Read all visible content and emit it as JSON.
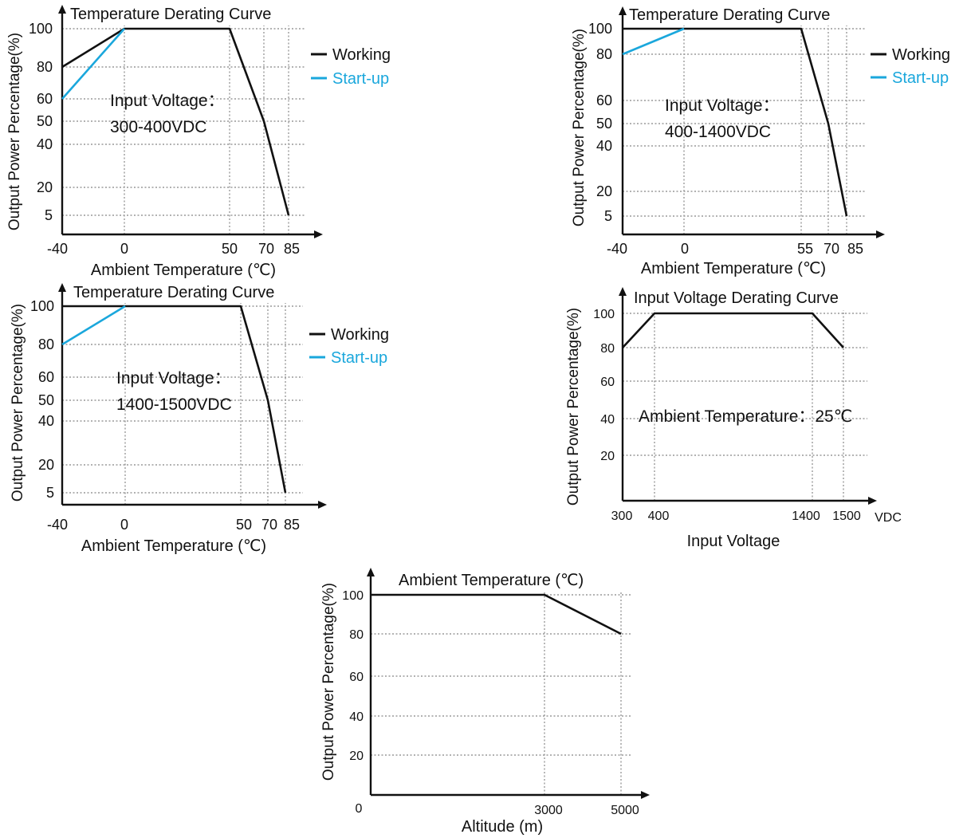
{
  "colors": {
    "working": "#111111",
    "startup": "#1aa7dc",
    "grid": "#999999"
  },
  "chart_data": [
    {
      "id": "c1",
      "type": "line",
      "title": "Temperature Derating Curve",
      "xlabel": "Ambient Temperature (℃)",
      "ylabel": "Output Power Percentage(%)",
      "xticks": [
        "-40",
        "0",
        "50",
        "70",
        "85"
      ],
      "yticks": [
        "5",
        "20",
        "40",
        "50",
        "60",
        "80",
        "100"
      ],
      "annotation": [
        "Input Voltage：",
        "300-400VDC"
      ],
      "legend": [
        "Working",
        "Start-up"
      ],
      "series": [
        {
          "name": "Working",
          "x": [
            -40,
            0,
            50,
            70,
            85
          ],
          "y": [
            80,
            100,
            100,
            50,
            5
          ]
        },
        {
          "name": "Start-up",
          "x": [
            -40,
            0
          ],
          "y": [
            60,
            100
          ]
        }
      ]
    },
    {
      "id": "c2",
      "type": "line",
      "title": "Temperature Derating Curve",
      "xlabel": "Ambient Temperature (℃)",
      "ylabel": "Output Power Percentage(%)",
      "xticks": [
        "-40",
        "0",
        "55",
        "70",
        "85"
      ],
      "yticks": [
        "5",
        "20",
        "40",
        "50",
        "60",
        "80",
        "100"
      ],
      "annotation": [
        "Input Voltage：",
        "400-1400VDC"
      ],
      "legend": [
        "Working",
        "Start-up"
      ],
      "series": [
        {
          "name": "Working",
          "x": [
            -40,
            55,
            70,
            85
          ],
          "y": [
            100,
            100,
            50,
            5
          ]
        },
        {
          "name": "Start-up",
          "x": [
            -40,
            0
          ],
          "y": [
            80,
            100
          ]
        }
      ]
    },
    {
      "id": "c3",
      "type": "line",
      "title": "Temperature Derating Curve",
      "xlabel": "Ambient Temperature (℃)",
      "ylabel": "Output Power Percentage(%)",
      "xticks": [
        "-40",
        "0",
        "50",
        "70",
        "85"
      ],
      "yticks": [
        "5",
        "20",
        "40",
        "50",
        "60",
        "80",
        "100"
      ],
      "annotation": [
        "Input Voltage：",
        "1400-1500VDC"
      ],
      "legend": [
        "Working",
        "Start-up"
      ],
      "series": [
        {
          "name": "Working",
          "x": [
            -40,
            50,
            70,
            85
          ],
          "y": [
            100,
            100,
            50,
            5
          ]
        },
        {
          "name": "Start-up",
          "x": [
            -40,
            0
          ],
          "y": [
            80,
            100
          ]
        }
      ]
    },
    {
      "id": "c4",
      "type": "line",
      "title": "Input Voltage Derating Curve",
      "xlabel": "Input Voltage",
      "ylabel": "Output Power Percentage(%)",
      "xunit": "VDC",
      "xticks": [
        "300",
        "400",
        "1400",
        "1500"
      ],
      "yticks": [
        "20",
        "40",
        "60",
        "80",
        "100"
      ],
      "annotation": [
        "Ambient Temperature：25℃"
      ],
      "series": [
        {
          "name": "Working",
          "x": [
            300,
            400,
            1400,
            1500
          ],
          "y": [
            80,
            100,
            100,
            80
          ]
        }
      ]
    },
    {
      "id": "c5",
      "type": "line",
      "title": "Ambient Temperature (℃)",
      "xlabel": "Altitude (m)",
      "ylabel": "Output Power Percentage(%)",
      "xticks": [
        "3000",
        "5000"
      ],
      "yticks": [
        "0",
        "20",
        "40",
        "60",
        "80",
        "100"
      ],
      "series": [
        {
          "name": "Working",
          "x": [
            0,
            3000,
            5000
          ],
          "y": [
            100,
            100,
            80
          ]
        }
      ]
    }
  ]
}
